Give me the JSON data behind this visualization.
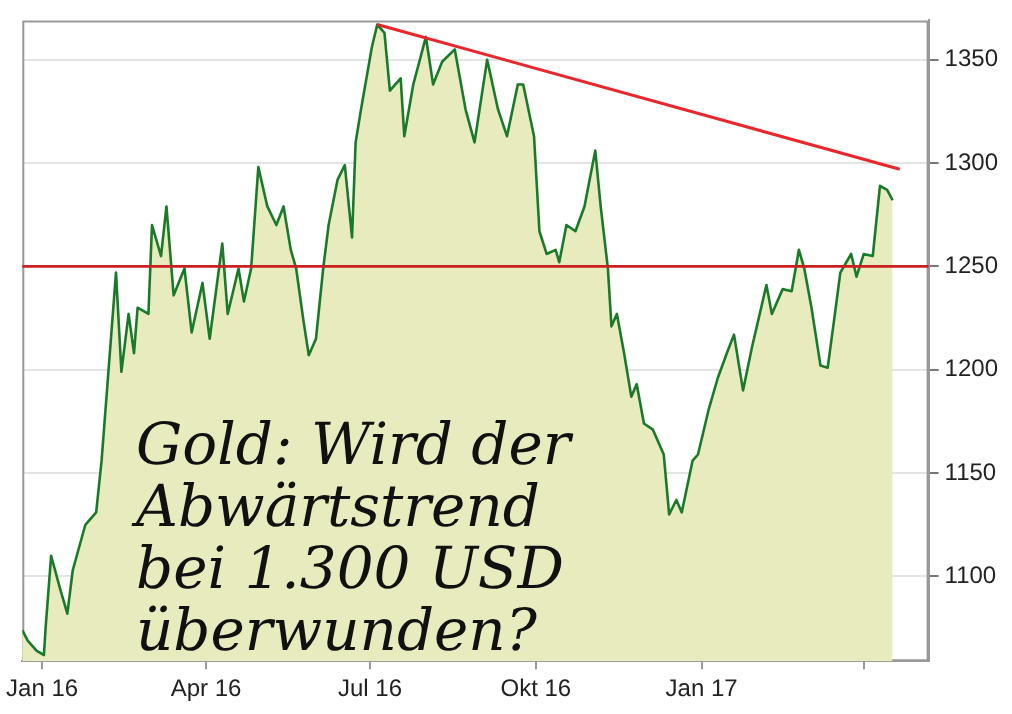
{
  "chart_data": {
    "type": "area",
    "x": [
      "2015-12-21",
      "2015-12-24",
      "2015-12-29",
      "2016-01-02",
      "2016-01-03",
      "2016-01-06",
      "2016-01-11",
      "2016-01-15",
      "2016-01-18",
      "2016-01-25",
      "2016-01-31",
      "2016-02-03",
      "2016-02-06",
      "2016-02-11",
      "2016-02-14",
      "2016-02-18",
      "2016-02-21",
      "2016-02-23",
      "2016-02-29",
      "2016-03-02",
      "2016-03-07",
      "2016-03-10",
      "2016-03-14",
      "2016-03-20",
      "2016-03-24",
      "2016-03-30",
      "2016-04-03",
      "2016-04-10",
      "2016-04-13",
      "2016-04-19",
      "2016-04-22",
      "2016-04-26",
      "2016-04-30",
      "2016-05-05",
      "2016-05-10",
      "2016-05-14",
      "2016-05-18",
      "2016-05-21",
      "2016-05-25",
      "2016-05-28",
      "2016-06-01",
      "2016-06-05",
      "2016-06-08",
      "2016-06-13",
      "2016-06-17",
      "2016-06-21",
      "2016-06-23",
      "2016-06-26",
      "2016-07-02",
      "2016-07-05",
      "2016-07-09",
      "2016-07-12",
      "2016-07-18",
      "2016-07-20",
      "2016-07-25",
      "2016-08-01",
      "2016-08-05",
      "2016-08-10",
      "2016-08-17",
      "2016-08-23",
      "2016-08-28",
      "2016-09-04",
      "2016-09-10",
      "2016-09-15",
      "2016-09-21",
      "2016-09-24",
      "2016-09-30",
      "2016-10-03",
      "2016-10-07",
      "2016-10-12",
      "2016-10-14",
      "2016-10-18",
      "2016-10-23",
      "2016-10-28",
      "2016-11-03",
      "2016-11-06",
      "2016-11-10",
      "2016-11-12",
      "2016-11-15",
      "2016-11-19",
      "2016-11-23",
      "2016-11-26",
      "2016-11-30",
      "2016-12-05",
      "2016-12-11",
      "2016-12-14",
      "2016-12-18",
      "2016-12-21",
      "2016-12-27",
      "2016-12-30",
      "2017-01-05",
      "2017-01-10",
      "2017-01-15",
      "2017-01-19",
      "2017-01-24",
      "2017-01-29",
      "2017-02-06",
      "2017-02-09",
      "2017-02-15",
      "2017-02-20",
      "2017-02-24",
      "2017-02-27",
      "2017-03-03",
      "2017-03-08",
      "2017-03-12",
      "2017-03-16",
      "2017-03-19",
      "2017-03-25",
      "2017-03-28",
      "2017-04-01",
      "2017-04-06",
      "2017-04-10",
      "2017-04-14",
      "2017-04-17"
    ],
    "series": [
      {
        "color": "#1a7a2a",
        "values": [
          1074,
          1069,
          1064,
          1062,
          1076,
          1110,
          1094,
          1082,
          1103,
          1125,
          1131,
          1156,
          1190,
          1247,
          1199,
          1227,
          1208,
          1230,
          1227,
          1270,
          1255,
          1279,
          1236,
          1249,
          1218,
          1242,
          1215,
          1261,
          1227,
          1249,
          1233,
          1249,
          1298,
          1279,
          1270,
          1279,
          1258,
          1249,
          1224,
          1207,
          1215,
          1249,
          1270,
          1292,
          1299,
          1264,
          1310,
          1326,
          1356,
          1367,
          1363,
          1335,
          1341,
          1313,
          1338,
          1361,
          1338,
          1349,
          1355,
          1326,
          1310,
          1350,
          1326,
          1313,
          1338,
          1338,
          1313,
          1267,
          1256,
          1258,
          1252,
          1270,
          1267,
          1279,
          1306,
          1279,
          1249,
          1221,
          1227,
          1208,
          1187,
          1193,
          1174,
          1171,
          1159,
          1130,
          1137,
          1131,
          1156,
          1159,
          1181,
          1196,
          1208,
          1217,
          1190,
          1211,
          1241,
          1227,
          1239,
          1238,
          1258,
          1249,
          1230,
          1202,
          1201,
          1227,
          1247,
          1256,
          1245,
          1256,
          1255,
          1289,
          1287,
          1282
        ]
      },
      {
        "type": "line",
        "color": "#e8262b",
        "x": [
          "2016-07-05",
          "2017-04-21"
        ],
        "values": [
          1367,
          1297
        ]
      }
    ],
    "xlim": [
      "2015-12-21",
      "2017-05-07"
    ],
    "xticks": [
      {
        "value": "2016-01-01",
        "label": "Jan 16"
      },
      {
        "value": "2016-04-01",
        "label": "Apr 16"
      },
      {
        "value": "2016-07-01",
        "label": "Jul 16"
      },
      {
        "value": "2016-10-01",
        "label": "Okt 16"
      },
      {
        "value": "2017-01-01",
        "label": "Jan 17"
      },
      {
        "value": "2017-04-01",
        "label": null
      }
    ],
    "ylim": [
      1059,
      1369
    ],
    "yticks": [
      1100,
      1150,
      1200,
      1250,
      1300,
      1350
    ],
    "grid": "y",
    "ref_lines": [
      {
        "axis": "y",
        "value": 1250,
        "color": "#cc1f1f"
      }
    ],
    "annotations": [
      "Gold: Wird der Abwärtstrend bei 1.300 USD überwunden?"
    ]
  }
}
